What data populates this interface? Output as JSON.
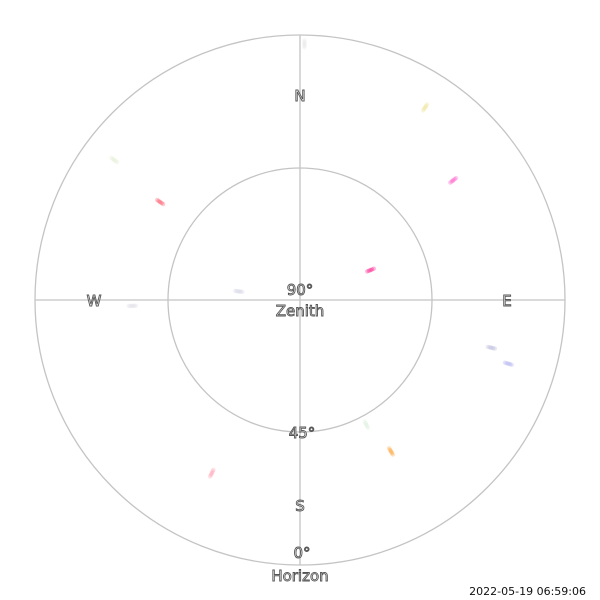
{
  "plot": {
    "compass": {
      "north": "N",
      "south": "S",
      "east": "E",
      "west": "W"
    },
    "rings": {
      "zenith_value": "90°",
      "zenith_label": "Zenith",
      "mid_value": "45°",
      "horizon_value": "0°",
      "horizon_label": "Horizon"
    },
    "line_color": "#c4c4c4",
    "background": "#ffffff"
  },
  "satellites": [
    {
      "azimuth": 1,
      "elevation": 3,
      "color": "#e8e8e8"
    },
    {
      "azimuth": 33,
      "elevation": 12,
      "color": "#f0e6a0"
    },
    {
      "azimuth": 52,
      "elevation": 24,
      "color": "#ff66cc"
    },
    {
      "azimuth": 67,
      "elevation": 64,
      "color": "#ff3399"
    },
    {
      "azimuth": 107,
      "elevation": 16,
      "color": "#b8b8f0"
    },
    {
      "azimuth": 104,
      "elevation": 23,
      "color": "#c0c0e0"
    },
    {
      "azimuth": 149,
      "elevation": 30,
      "color": "#ffaa44"
    },
    {
      "azimuth": 152,
      "elevation": 42,
      "color": "#e0f0e0"
    },
    {
      "azimuth": 207,
      "elevation": 24,
      "color": "#ffaabb"
    },
    {
      "azimuth": 278,
      "elevation": 69,
      "color": "#d8d8e8"
    },
    {
      "azimuth": 268,
      "elevation": 33,
      "color": "#e0e0e8"
    },
    {
      "azimuth": 305,
      "elevation": 32,
      "color": "#ff6677"
    },
    {
      "azimuth": 307,
      "elevation": 11,
      "color": "#e6f0d8"
    }
  ],
  "timestamp": "2022-05-19 06:59:06"
}
